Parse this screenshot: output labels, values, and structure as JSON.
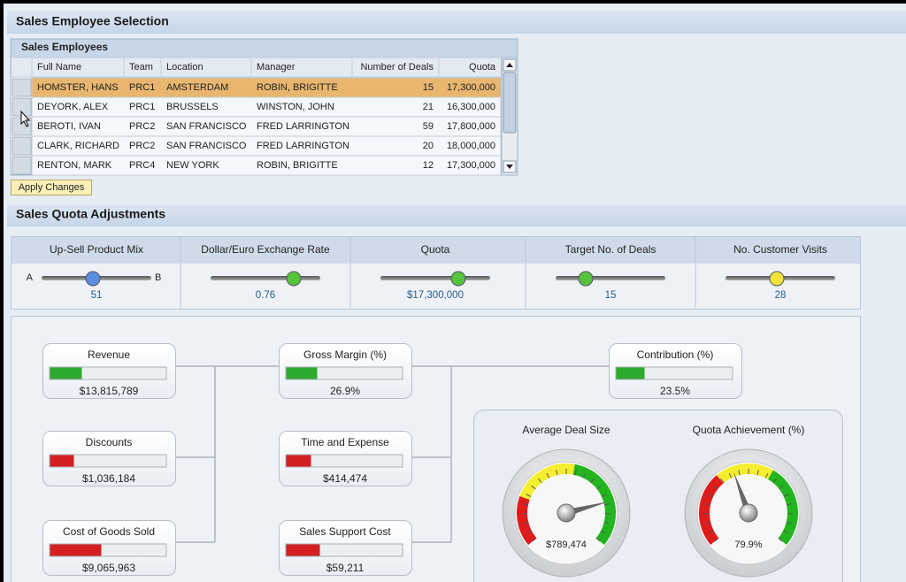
{
  "sections": {
    "selection": "Sales Employee Selection",
    "adjustments": "Sales Quota Adjustments"
  },
  "table": {
    "title": "Sales Employees",
    "columns": [
      "Full Name",
      "Team",
      "Location",
      "Manager",
      "Number of Deals",
      "Quota"
    ],
    "rows": [
      [
        "HOMSTER, HANS",
        "PRC1",
        "AMSTERDAM",
        "ROBIN, BRIGITTE",
        "15",
        "17,300,000"
      ],
      [
        "DEYORK, ALEX",
        "PRC1",
        "BRUSSELS",
        "WINSTON, JOHN",
        "21",
        "16,300,000"
      ],
      [
        "BEROTI, IVAN",
        "PRC2",
        "SAN FRANCISCO",
        "FRED LARRINGTON",
        "59",
        "17,800,000"
      ],
      [
        "CLARK, RICHARD",
        "PRC2",
        "SAN FRANCISCO",
        "FRED LARRINGTON",
        "20",
        "18,000,000"
      ],
      [
        "RENTON, MARK",
        "PRC4",
        "NEW YORK",
        "ROBIN, BRIGITTE",
        "12",
        "17,300,000"
      ]
    ]
  },
  "apply_button": "Apply Changes",
  "sliders": [
    {
      "label": "Up-Sell Product Mix",
      "min_label": "A",
      "max_label": "B",
      "value": "51"
    },
    {
      "label": "Dollar/Euro Exchange Rate",
      "value": "0.76"
    },
    {
      "label": "Quota",
      "value": "$17,300,000"
    },
    {
      "label": "Target No. of Deals",
      "value": "15"
    },
    {
      "label": "No. Customer Visits",
      "value": "28"
    }
  ],
  "kpis": [
    {
      "label": "Revenue",
      "value": "$13,815,789"
    },
    {
      "label": "Discounts",
      "value": "$1,036,184"
    },
    {
      "label": "Cost of Goods Sold",
      "value": "$9,065,963"
    },
    {
      "label": "Gross Margin (%)",
      "value": "26.9%"
    },
    {
      "label": "Time and Expense",
      "value": "$414,474"
    },
    {
      "label": "Sales Support Cost",
      "value": "$59,211"
    },
    {
      "label": "Contribution (%)",
      "value": "23.5%"
    }
  ],
  "gauges": [
    {
      "label": "Average Deal Size",
      "value": "$789,474"
    },
    {
      "label": "Quota Achievement (%)",
      "value": "79.9%"
    }
  ]
}
